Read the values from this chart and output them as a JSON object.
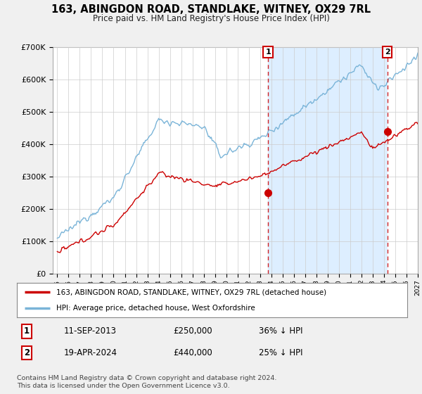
{
  "title": "163, ABINGDON ROAD, STANDLAKE, WITNEY, OX29 7RL",
  "subtitle": "Price paid vs. HM Land Registry's House Price Index (HPI)",
  "sale1_date": "11-SEP-2013",
  "sale1_price": 250000,
  "sale1_pct": "36% ↓ HPI",
  "sale2_date": "19-APR-2024",
  "sale2_price": 440000,
  "sale2_pct": "25% ↓ HPI",
  "legend_line1": "163, ABINGDON ROAD, STANDLAKE, WITNEY, OX29 7RL (detached house)",
  "legend_line2": "HPI: Average price, detached house, West Oxfordshire",
  "footer": "Contains HM Land Registry data © Crown copyright and database right 2024.\nThis data is licensed under the Open Government Licence v3.0.",
  "hpi_color": "#7ab4d8",
  "price_color": "#cc0000",
  "marker_color": "#cc0000",
  "shaded_color": "#ddeeff",
  "hatch_color": "#cccccc",
  "ylim": [
    0,
    700000
  ],
  "yticks": [
    0,
    100000,
    200000,
    300000,
    400000,
    500000,
    600000,
    700000
  ],
  "background_color": "#f0f0f0",
  "plot_bg": "#ffffff",
  "grid_color": "#cccccc"
}
